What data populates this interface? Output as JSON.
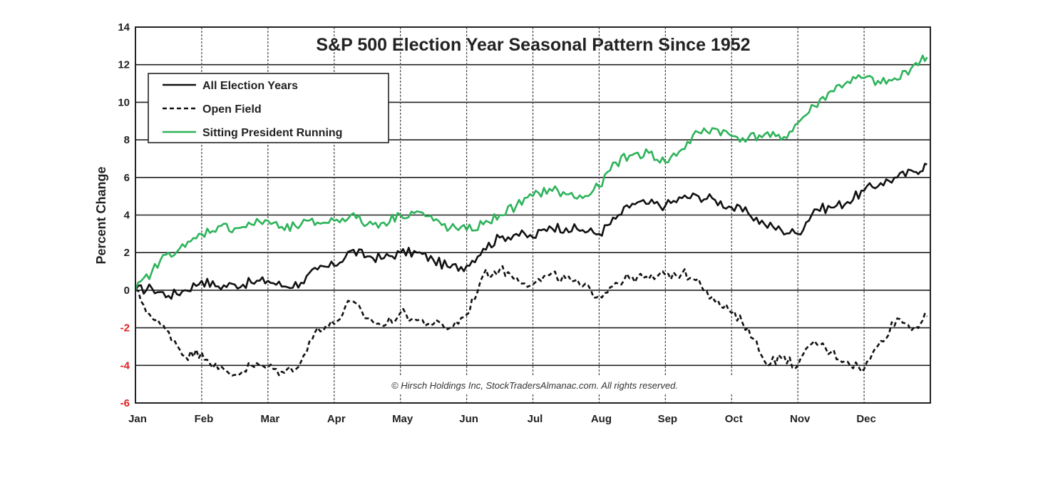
{
  "chart_data": {
    "type": "line",
    "title": "S&P 500 Election Year Seasonal Pattern Since 1952",
    "xlabel": "",
    "ylabel": "Percent Change",
    "ylim": [
      -6,
      14
    ],
    "yticks": [
      "14",
      "12",
      "10",
      "8",
      "6",
      "4",
      "2",
      "0",
      "-2",
      "-4",
      "-6"
    ],
    "negative_tick_color": "#e02020",
    "categories": [
      "Jan",
      "Feb",
      "Mar",
      "Apr",
      "May",
      "Jun",
      "Jul",
      "Aug",
      "Sep",
      "Oct",
      "Nov",
      "Dec"
    ],
    "grid": true,
    "legend_position": "top-left",
    "copyright": "© Hirsch  Holdings Inc, StockTradersAlmanac.com.  All rights reserved.",
    "x": [
      0,
      0.25,
      0.5,
      0.75,
      1,
      1.25,
      1.5,
      1.75,
      2,
      2.25,
      2.5,
      2.75,
      3,
      3.25,
      3.5,
      3.75,
      4,
      4.25,
      4.5,
      4.75,
      5,
      5.25,
      5.5,
      5.75,
      6,
      6.25,
      6.5,
      6.75,
      7,
      7.25,
      7.5,
      7.75,
      8,
      8.25,
      8.5,
      8.75,
      9,
      9.25,
      9.5,
      9.75,
      10,
      10.25,
      10.5,
      10.75,
      11,
      11.25,
      11.5,
      11.75,
      11.95
    ],
    "series": [
      {
        "name": "All Election Years",
        "color": "#111111",
        "dash": "solid",
        "values": [
          0,
          0.1,
          -0.3,
          0,
          0.5,
          0.2,
          0.3,
          0.4,
          0.5,
          0.2,
          0.4,
          1.1,
          1.3,
          2.1,
          1.8,
          1.7,
          2.0,
          2.0,
          1.6,
          1.2,
          1.3,
          2.2,
          2.8,
          3.0,
          2.8,
          3.4,
          3.3,
          3.2,
          3.0,
          3.8,
          4.6,
          4.6,
          4.5,
          4.9,
          5.0,
          4.8,
          4.4,
          4.1,
          3.5,
          3.2,
          3.0,
          4.3,
          4.4,
          4.7,
          5.3,
          5.7,
          6.0,
          6.3,
          6.7
        ]
      },
      {
        "name": "Open Field",
        "color": "#111111",
        "dash": "dashed",
        "values": [
          0,
          -1.5,
          -2.2,
          -3.5,
          -3.3,
          -4.2,
          -4.5,
          -4.0,
          -4.1,
          -4.4,
          -3.8,
          -2.0,
          -1.8,
          -0.6,
          -1.5,
          -1.9,
          -1.2,
          -1.6,
          -1.8,
          -2.0,
          -1.3,
          0.8,
          1.1,
          0.7,
          0.3,
          0.8,
          0.6,
          0.2,
          -0.3,
          0.4,
          0.7,
          0.6,
          0.8,
          0.9,
          0.6,
          -0.6,
          -1.2,
          -2.0,
          -3.8,
          -3.6,
          -4.0,
          -2.7,
          -3.3,
          -3.8,
          -4.2,
          -2.7,
          -1.5,
          -2.0,
          -1.4
        ]
      },
      {
        "name": "Sitting President Running",
        "color": "#2db35a",
        "dash": "solid",
        "values": [
          0,
          1.0,
          2.0,
          2.3,
          3.0,
          3.4,
          3.3,
          3.5,
          3.7,
          3.2,
          3.5,
          3.6,
          3.7,
          4.0,
          3.5,
          3.6,
          4.0,
          4.2,
          3.7,
          3.3,
          3.2,
          3.5,
          4.0,
          4.5,
          5.0,
          5.4,
          5.1,
          4.9,
          5.5,
          6.8,
          7.2,
          7.3,
          6.8,
          7.5,
          8.4,
          8.6,
          8.2,
          8.1,
          8.3,
          8.0,
          8.9,
          9.8,
          10.6,
          11.1,
          11.3,
          11.0,
          11.2,
          12.0,
          12.4
        ]
      }
    ]
  }
}
